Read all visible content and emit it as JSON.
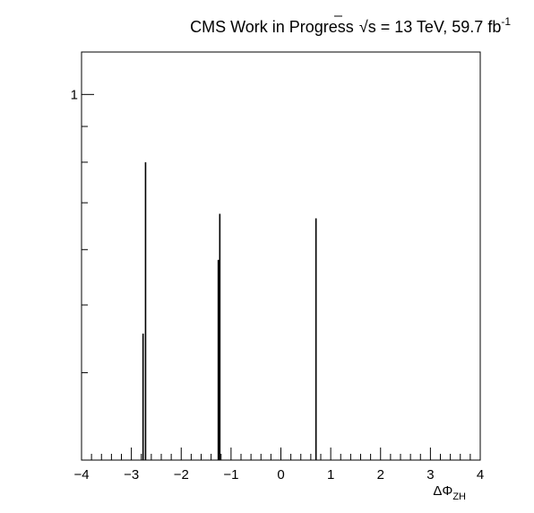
{
  "chart_data": {
    "type": "bar",
    "title": {
      "prefix": "CMS Work in Progress",
      "sqrt_symbol": "√",
      "sqrt_var": "s",
      "energy": " = 13 TeV, 59.7 fb",
      "exponent": "-1"
    },
    "xlabel": {
      "main": "ΔΦ",
      "subscript": "ZH"
    },
    "ylabel": "",
    "xlim": [
      -4,
      4
    ],
    "ylim": [
      0.3,
      1.15
    ],
    "yscale": "log",
    "x_major_ticks": [
      -4,
      -3,
      -2,
      -1,
      0,
      1,
      2,
      3,
      4
    ],
    "x_tick_labels": [
      "−4",
      "−3",
      "−2",
      "−1",
      "0",
      "1",
      "2",
      "3",
      "4"
    ],
    "y_labeled_ticks": [
      {
        "value": 1,
        "label": "1"
      }
    ],
    "bars": [
      {
        "x": -2.77,
        "value": 0.455
      },
      {
        "x": -2.72,
        "value": 0.8
      },
      {
        "x": -1.26,
        "value": 0.58
      },
      {
        "x": -1.23,
        "value": 0.675
      },
      {
        "x": 0.7,
        "value": 0.665
      }
    ],
    "bin_width": 0.02,
    "grid": false,
    "legend": "none"
  }
}
